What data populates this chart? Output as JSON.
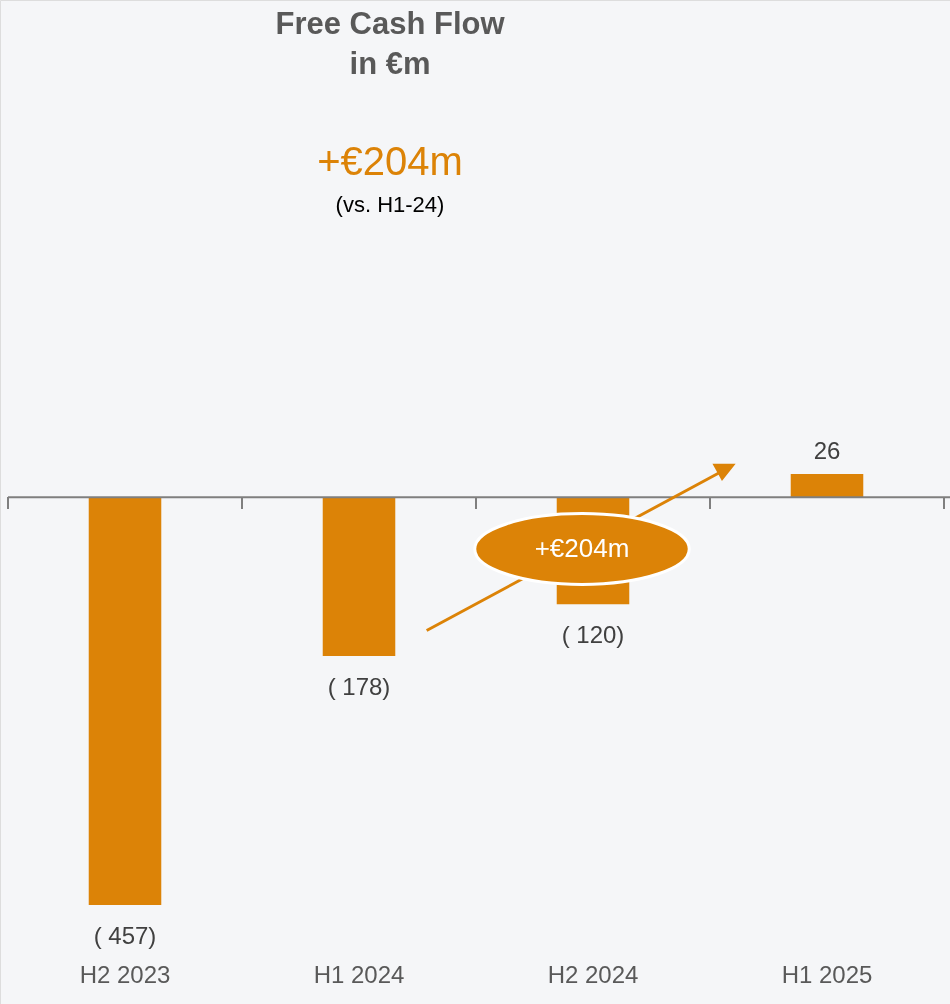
{
  "chart_data": {
    "type": "bar",
    "title": "Free Cash Flow\nin €m",
    "categories": [
      "H2 2023",
      "H1 2024",
      "H2 2024",
      "H1 2025"
    ],
    "values": [
      -457,
      -178,
      -120,
      26
    ],
    "value_labels": [
      "( 457)",
      "( 178)",
      "( 120)",
      "26"
    ],
    "color": "#dc8307",
    "annotations": [
      "+€204m",
      "(vs. H1-24)",
      "+€204m"
    ]
  }
}
